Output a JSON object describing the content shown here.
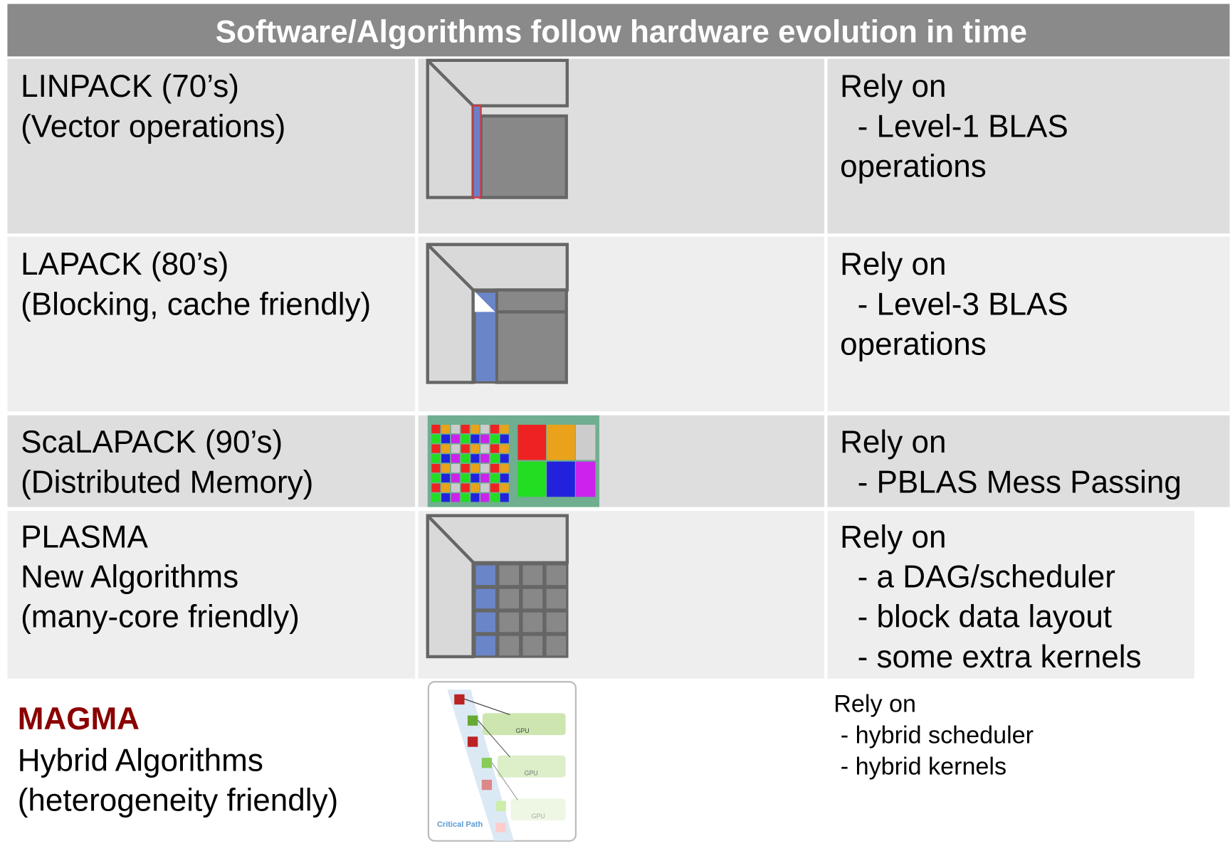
{
  "header": {
    "title": "Software/Algorithms follow hardware evolution in time"
  },
  "rows": [
    {
      "left": [
        "LINPACK (70’s)",
        "(Vector operations)"
      ],
      "right": [
        "Rely on",
        "  - Level-1 BLAS",
        "operations"
      ]
    },
    {
      "left": [
        "LAPACK (80’s)",
        "(Blocking, cache friendly)"
      ],
      "right": [
        "Rely on",
        "  - Level-3 BLAS",
        "operations"
      ]
    },
    {
      "left": [
        "ScaLAPACK (90’s)",
        "(Distributed Memory)"
      ],
      "right": [
        "Rely on",
        "  - PBLAS Mess Passing"
      ]
    },
    {
      "left": [
        "PLASMA",
        "New Algorithms",
        "(many-core friendly)"
      ],
      "right": [
        "Rely on",
        "  - a DAG/scheduler",
        "  - block data layout",
        "  - some extra kernels"
      ]
    },
    {
      "left": [
        "MAGMA",
        "Hybrid Algorithms",
        "(heterogeneity friendly)"
      ],
      "right": [
        "Rely on",
        " - hybrid scheduler",
        " - hybrid kernels"
      ],
      "figure_labels": [
        "GPU",
        "GPU",
        "GPU",
        "Critical Path"
      ]
    }
  ]
}
